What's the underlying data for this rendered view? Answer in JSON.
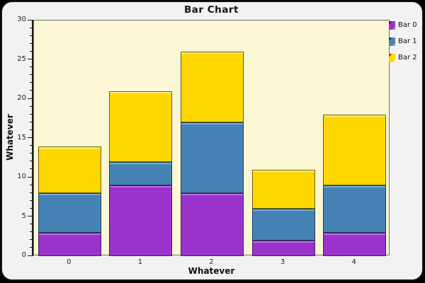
{
  "window": {
    "outer_background": "#000000",
    "panel_background": "#F2F2F2",
    "frame_border": "#161616"
  },
  "chart_data": {
    "type": "bar",
    "stacked": true,
    "title": "Bar Chart",
    "xlabel": "Whatever",
    "ylabel": "Whatever",
    "categories": [
      "0",
      "1",
      "2",
      "3",
      "4"
    ],
    "series": [
      {
        "name": "Bar 0",
        "values": [
          3,
          9,
          8,
          2,
          3
        ],
        "color": "#9933CC",
        "highlight": "#C46AE8",
        "border": "#4B1A66"
      },
      {
        "name": "Bar 1",
        "values": [
          5,
          3,
          9,
          4,
          6
        ],
        "color": "#4682B4",
        "highlight": "#79AEDD",
        "border": "#1E3C5A"
      },
      {
        "name": "Bar 2",
        "values": [
          6,
          9,
          9,
          5,
          9
        ],
        "color": "#FFD700",
        "highlight": "#FFEE88",
        "border": "#6E5F00"
      }
    ],
    "stack_totals": [
      14,
      21,
      26,
      11,
      18
    ],
    "ylim": [
      0,
      30
    ],
    "y_major_step": 5,
    "y_minor_step": 1,
    "grid": false,
    "plot_background": "#FBF7D5",
    "legend_position": "top-right"
  }
}
